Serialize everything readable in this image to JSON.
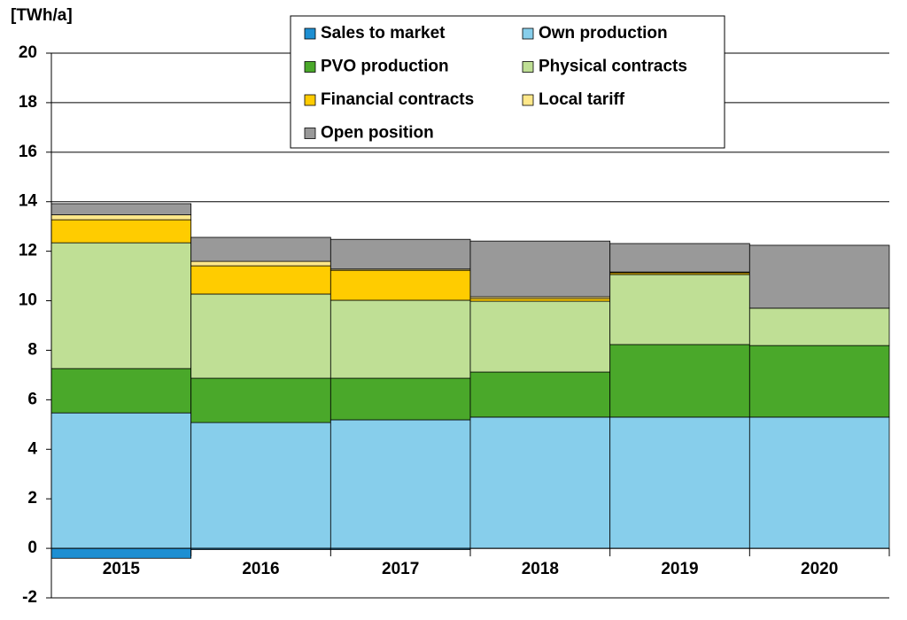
{
  "chart_data": {
    "type": "stacked_bar",
    "y_label": "[TWh/a]",
    "categories": [
      "2015",
      "2016",
      "2017",
      "2018",
      "2019",
      "2020"
    ],
    "series": [
      {
        "name": "Sales to market",
        "color": "#1e8fd2",
        "values": [
          -0.4,
          -0.05,
          -0.05,
          0,
          0,
          0
        ]
      },
      {
        "name": "Own production",
        "color": "#87ceeb",
        "values": [
          5.47,
          5.08,
          5.19,
          5.3,
          5.3,
          5.3
        ]
      },
      {
        "name": "PVO production",
        "color": "#4aa82a",
        "values": [
          1.79,
          1.79,
          1.68,
          1.82,
          2.93,
          2.89
        ]
      },
      {
        "name": "Physical contracts",
        "color": "#bfdf95",
        "values": [
          5.08,
          3.4,
          3.15,
          2.86,
          2.83,
          1.51
        ]
      },
      {
        "name": "Financial contracts",
        "color": "#ffcc00",
        "values": [
          0.93,
          1.14,
          1.21,
          0.11,
          0.07,
          0
        ]
      },
      {
        "name": "Local tariff",
        "color": "#ffe88a",
        "values": [
          0.2,
          0.18,
          0.05,
          0.07,
          0.03,
          0
        ]
      },
      {
        "name": "Open position",
        "color": "#999999",
        "values": [
          0.45,
          0.97,
          1.2,
          2.25,
          1.15,
          2.54
        ]
      }
    ],
    "ylim": [
      -2,
      20
    ],
    "yticks": [
      -2,
      0,
      2,
      4,
      6,
      8,
      10,
      12,
      14,
      16,
      18,
      20
    ],
    "grid": true
  }
}
